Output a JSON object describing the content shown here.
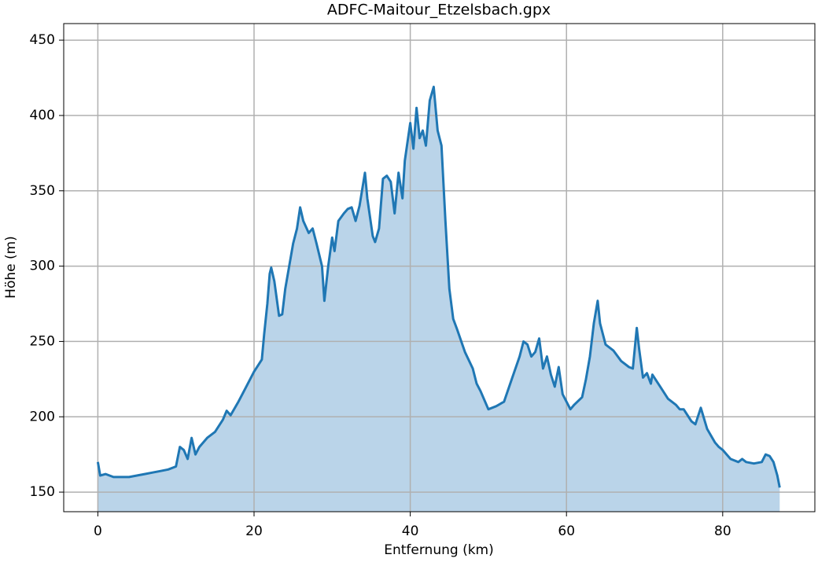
{
  "chart_data": {
    "type": "area_line",
    "title": "ADFC-Maitour_Etzelsbach.gpx",
    "x_label": "Entfernung (km)",
    "y_label": "Höhe (m)",
    "xlim": [
      -4.37,
      91.8
    ],
    "ylim": [
      137,
      461
    ],
    "xticks": [
      0,
      20,
      40,
      60,
      80
    ],
    "yticks": [
      150,
      200,
      250,
      300,
      350,
      400,
      450
    ],
    "grid": true,
    "color": "#1f77b4",
    "fill_color": "#bad4e9",
    "x": [
      0,
      0.3,
      1,
      2,
      3,
      4,
      5,
      6,
      7,
      8,
      9,
      10,
      10.5,
      11,
      11.5,
      12,
      12.5,
      13,
      14,
      15,
      16,
      16.5,
      17,
      18,
      19,
      20,
      21,
      21.3,
      21.7,
      22,
      22.2,
      22.6,
      23.2,
      23.6,
      24,
      25,
      25.5,
      25.9,
      26.3,
      27,
      27.5,
      28,
      28.7,
      29,
      29.5,
      30,
      30.3,
      30.8,
      31.5,
      32,
      32.5,
      33,
      33.5,
      34.2,
      34.5,
      35.2,
      35.5,
      36,
      36.5,
      37,
      37.5,
      38,
      38.5,
      39,
      39.3,
      40,
      40.4,
      40.8,
      41.2,
      41.6,
      42,
      42.5,
      43,
      43.5,
      44,
      44.5,
      45,
      45.5,
      46,
      47,
      48,
      48.5,
      49,
      50,
      51,
      52,
      53,
      54,
      54.5,
      55,
      55.5,
      56,
      56.5,
      57,
      57.5,
      58,
      58.5,
      59,
      59.5,
      60.5,
      61,
      62,
      62.5,
      63,
      63.5,
      64,
      64.3,
      65,
      66,
      67,
      68,
      68.5,
      69,
      69.3,
      69.8,
      70.3,
      70.8,
      71,
      72,
      73,
      74,
      74.5,
      75,
      76,
      76.5,
      77.2,
      78,
      79,
      79.5,
      80,
      81,
      82,
      82.5,
      83,
      84,
      85,
      85.5,
      86,
      86.5,
      87,
      87.3
    ],
    "values": [
      170,
      161,
      162,
      160,
      160,
      160,
      161,
      162,
      163,
      164,
      165,
      167,
      180,
      178,
      172,
      186,
      175,
      180,
      186,
      190,
      198,
      204,
      201,
      210,
      220,
      230,
      238,
      255,
      275,
      295,
      299,
      290,
      267,
      268,
      285,
      315,
      325,
      339,
      330,
      322,
      325,
      315,
      300,
      277,
      300,
      319,
      310,
      330,
      335,
      338,
      339,
      330,
      340,
      362,
      345,
      320,
      316,
      325,
      358,
      360,
      356,
      335,
      362,
      345,
      370,
      395,
      378,
      405,
      385,
      390,
      380,
      410,
      419,
      390,
      380,
      330,
      285,
      265,
      258,
      243,
      232,
      222,
      217,
      205,
      207,
      210,
      225,
      240,
      250,
      248,
      240,
      243,
      252,
      232,
      240,
      228,
      220,
      233,
      215,
      205,
      208,
      213,
      225,
      240,
      262,
      277,
      262,
      248,
      244,
      237,
      233,
      232,
      259,
      245,
      226,
      229,
      222,
      228,
      220,
      212,
      208,
      205,
      205,
      197,
      195,
      206,
      192,
      183,
      180,
      178,
      172,
      170,
      172,
      170,
      169,
      170,
      175,
      174,
      170,
      161,
      153
    ]
  }
}
